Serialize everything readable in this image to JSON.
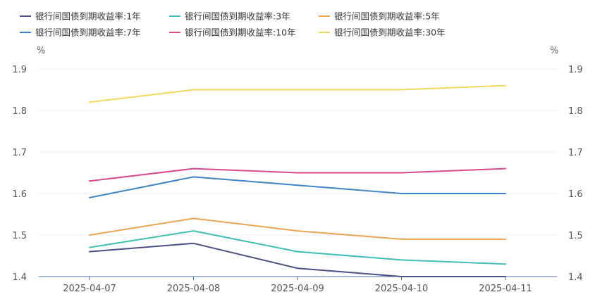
{
  "chart_data": {
    "type": "line",
    "title": "",
    "y_unit_left": "%",
    "y_unit_right": "%",
    "categories": [
      "2025-04-07",
      "2025-04-08",
      "2025-04-09",
      "2025-04-10",
      "2025-04-11"
    ],
    "ylim": [
      1.4,
      1.9
    ],
    "yticks": [
      "1.4",
      "1.5",
      "1.6",
      "1.7",
      "1.8",
      "1.9"
    ],
    "grid": true,
    "legend_position": "top-left",
    "series": [
      {
        "name": "银行间国债到期收益率:1年",
        "color": "#4b4f86",
        "values": [
          1.46,
          1.48,
          1.42,
          1.4,
          1.4
        ]
      },
      {
        "name": "银行间国债到期收益率:3年",
        "color": "#3dbfb3",
        "values": [
          1.47,
          1.51,
          1.46,
          1.44,
          1.43
        ]
      },
      {
        "name": "银行间国债到期收益率:5年",
        "color": "#eba553",
        "values": [
          1.5,
          1.54,
          1.51,
          1.49,
          1.49
        ]
      },
      {
        "name": "银行间国债到期收益率:7年",
        "color": "#3f84c6",
        "values": [
          1.59,
          1.64,
          1.62,
          1.6,
          1.6
        ]
      },
      {
        "name": "银行间国债到期收益率:10年",
        "color": "#d9468f",
        "values": [
          1.63,
          1.66,
          1.65,
          1.65,
          1.66
        ]
      },
      {
        "name": "银行间国债到期收益率:30年",
        "color": "#f0d85a",
        "values": [
          1.82,
          1.85,
          1.85,
          1.85,
          1.86
        ]
      }
    ]
  }
}
